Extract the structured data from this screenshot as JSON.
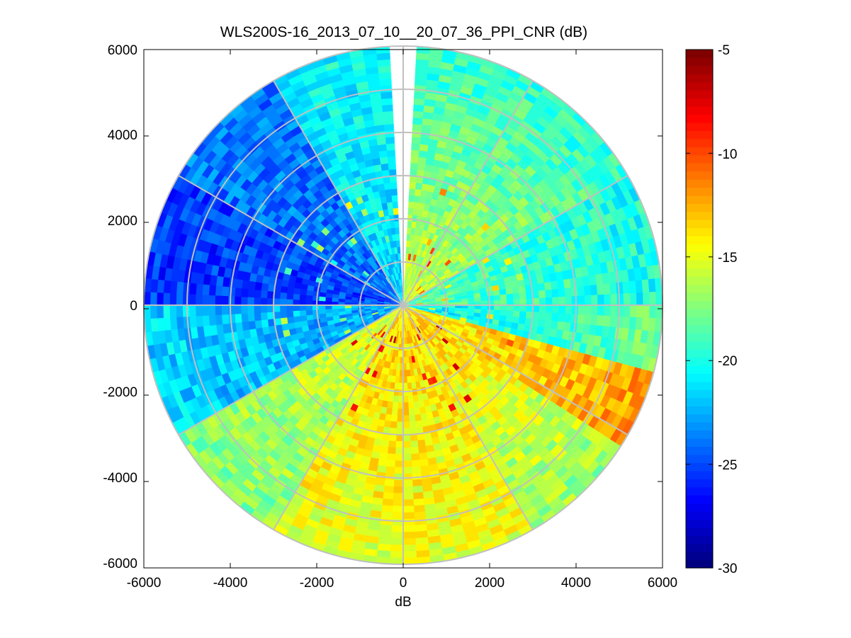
{
  "chart_data": {
    "type": "heatmap",
    "subtype": "polar-ppi",
    "title": "WLS200S-16_2013_07_10__20_07_36_PPI_CNR (dB)",
    "xlabel": "dB",
    "ylabel": "",
    "xlim": [
      -6000,
      6000
    ],
    "ylim": [
      -6000,
      6000
    ],
    "x_ticks": [
      "-6000",
      "-4000",
      "-2000",
      "0",
      "2000",
      "4000",
      "6000"
    ],
    "y_ticks": [
      "6000",
      "4000",
      "2000",
      "0",
      "-2000",
      "-4000",
      "-6000"
    ],
    "max_range": 6000,
    "range_rings": [
      1000,
      2000,
      3000,
      4000,
      5000,
      6000
    ],
    "spokes_deg": [
      0,
      30,
      60,
      90,
      120,
      150,
      180,
      210,
      240,
      270,
      300,
      330
    ],
    "missing_sector_deg": [
      -3,
      3
    ],
    "colorbar": {
      "min": -30,
      "max": -5,
      "ticks": [
        "-5",
        "-10",
        "-15",
        "-20",
        "-25",
        "-30"
      ],
      "colormap": "jet"
    },
    "sector_means_cnr_db": [
      {
        "az_from": 3,
        "az_to": 60,
        "near": -15.5,
        "far": -19.5
      },
      {
        "az_from": 60,
        "az_to": 90,
        "near": -18.5,
        "far": -20.0
      },
      {
        "az_from": 90,
        "az_to": 105,
        "near": -21.0,
        "far": -18.0
      },
      {
        "az_from": 105,
        "az_to": 122,
        "near": -14.5,
        "far": -12.0
      },
      {
        "az_from": 122,
        "az_to": 150,
        "near": -13.0,
        "far": -17.0
      },
      {
        "az_from": 150,
        "az_to": 210,
        "near": -13.5,
        "far": -15.0
      },
      {
        "az_from": 210,
        "az_to": 240,
        "near": -15.0,
        "far": -17.5
      },
      {
        "az_from": 240,
        "az_to": 270,
        "near": -23.0,
        "far": -21.5
      },
      {
        "az_from": 270,
        "az_to": 300,
        "near": -25.0,
        "far": -25.5
      },
      {
        "az_from": 300,
        "az_to": 330,
        "near": -24.0,
        "far": -24.0
      },
      {
        "az_from": 330,
        "az_to": 357,
        "near": -21.5,
        "far": -20.5
      }
    ]
  }
}
